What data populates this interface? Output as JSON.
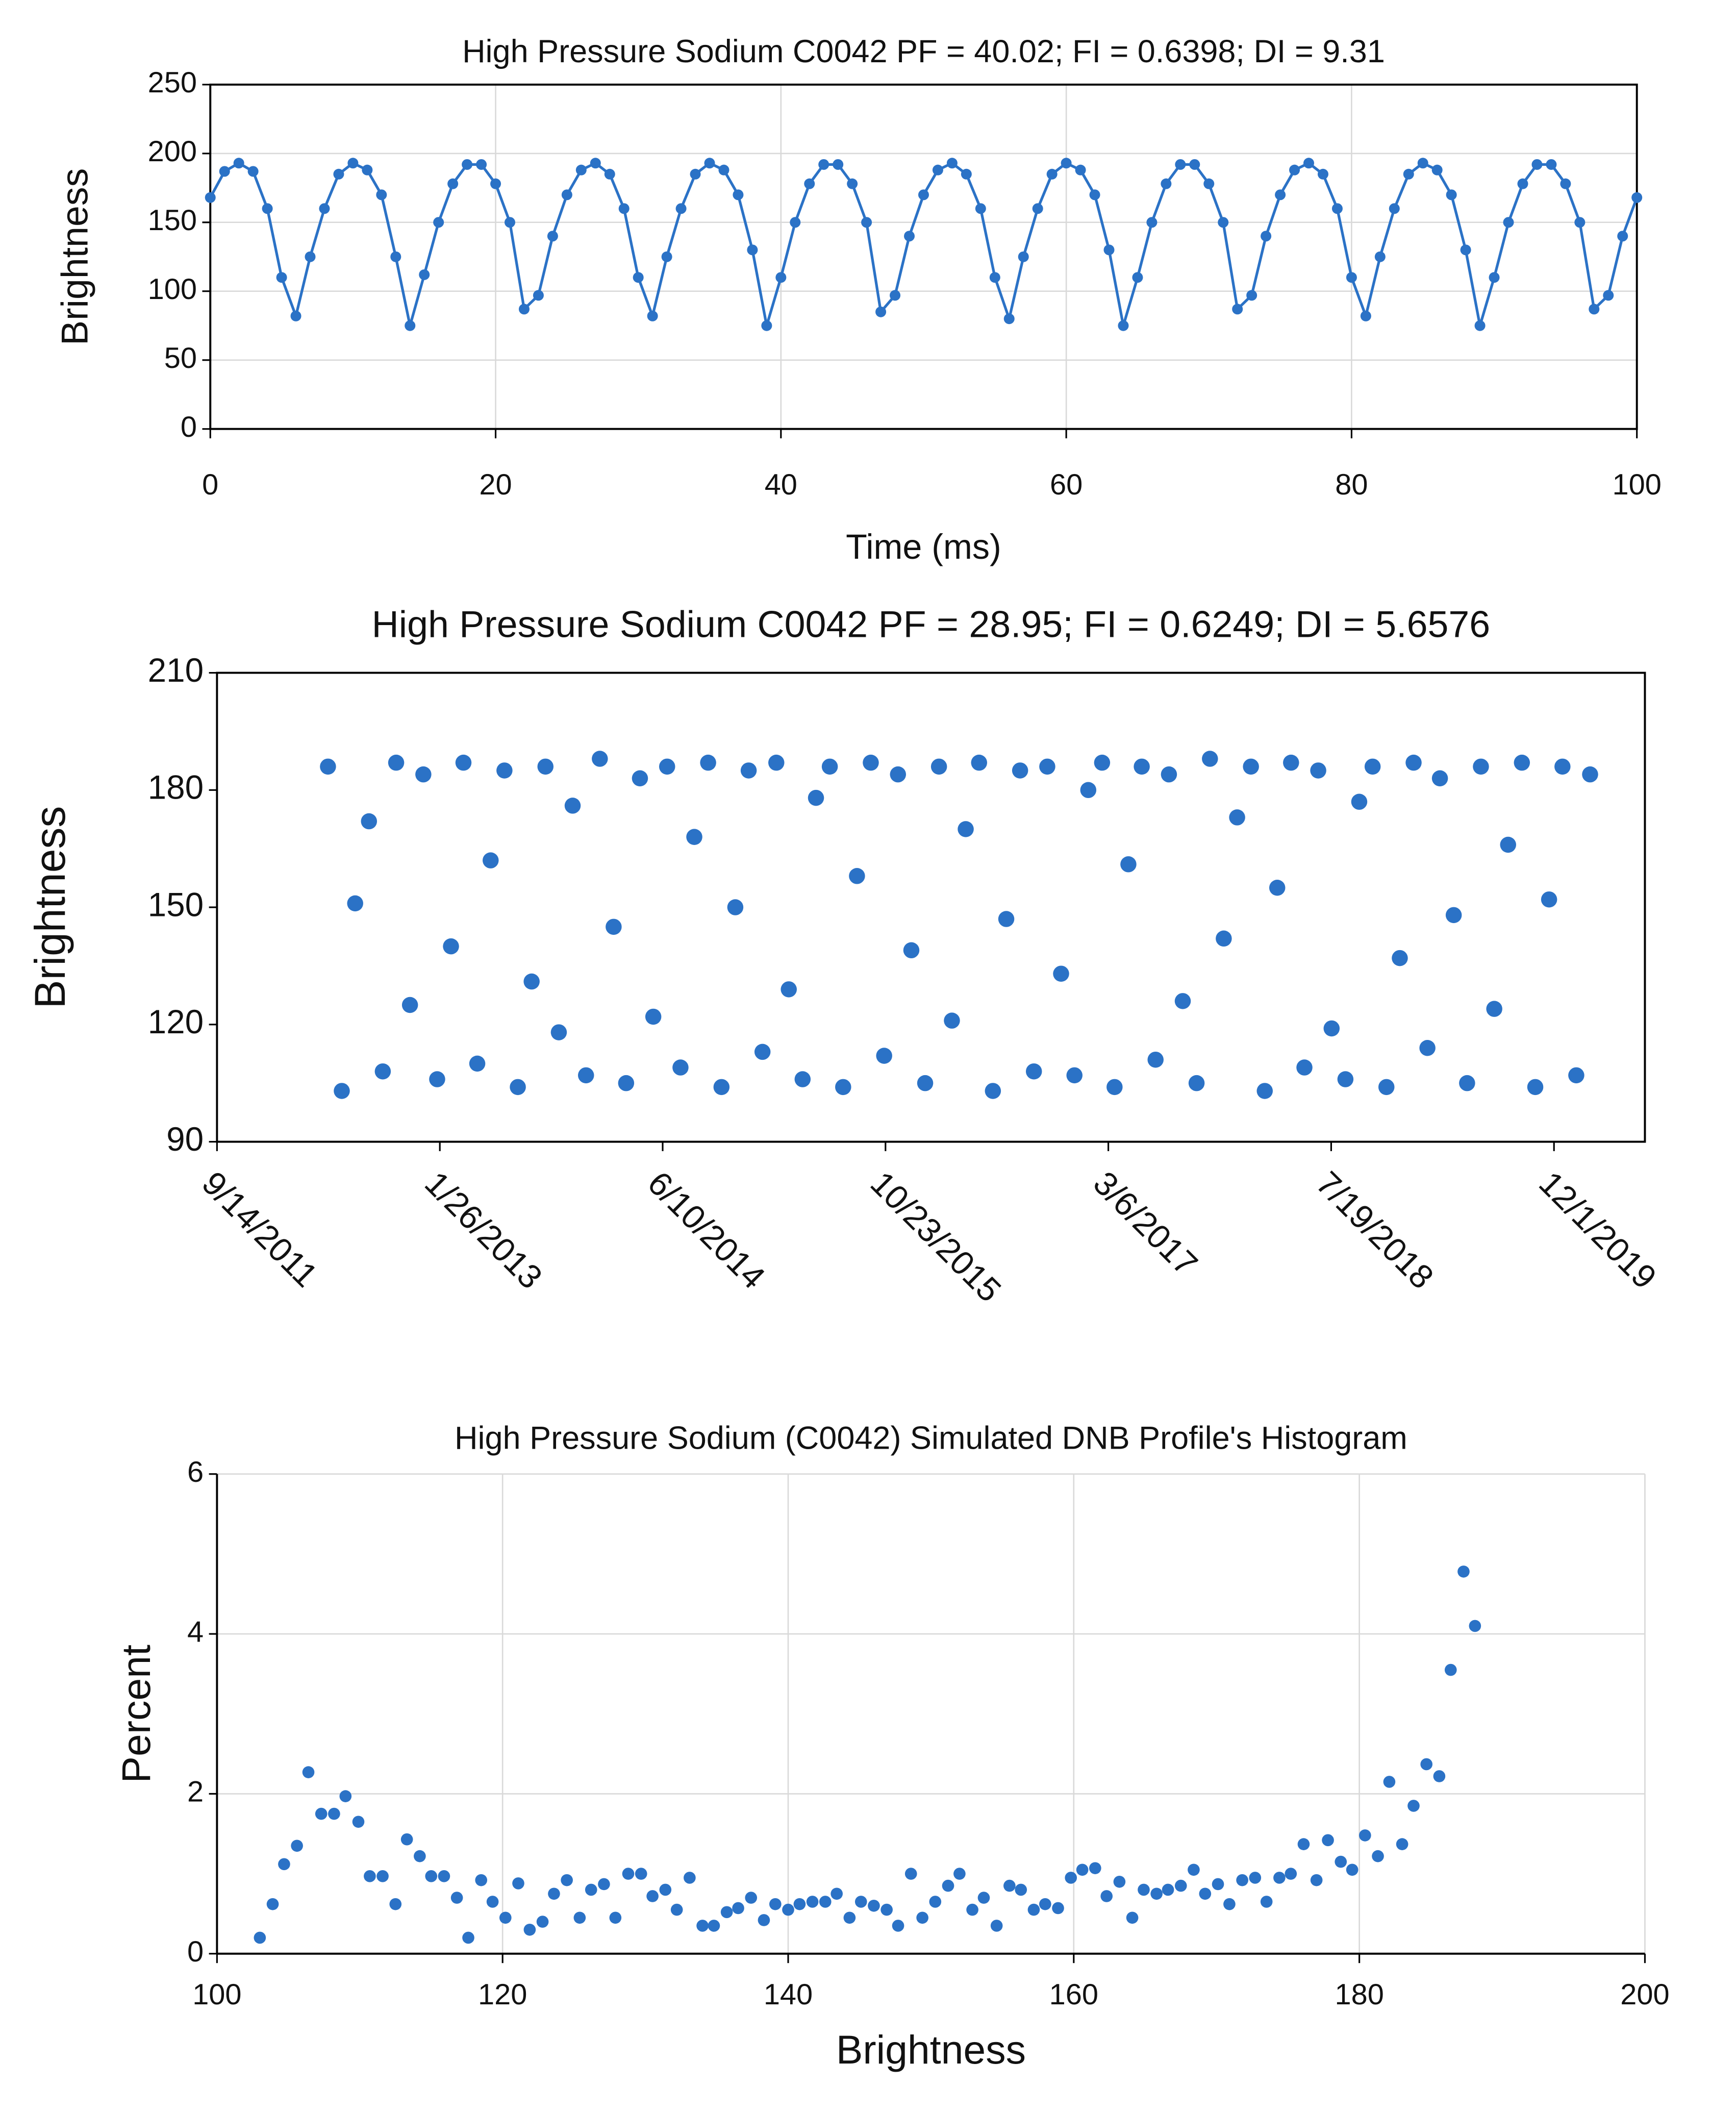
{
  "chart_data": [
    {
      "type": "line",
      "title": "High Pressure Sodium C0042 PF = 40.02; FI = 0.6398; DI = 9.31",
      "x_label": "Time (ms)",
      "y_label": "Brightness",
      "color": "#2b72c6",
      "grid": true,
      "markers": true,
      "x": [
        0,
        1,
        2,
        3,
        4,
        5,
        6,
        7,
        8,
        9,
        10,
        11,
        12,
        13,
        14,
        15,
        16,
        17,
        18,
        19,
        20,
        21,
        22,
        23,
        24,
        25,
        26,
        27,
        28,
        29,
        30,
        31,
        32,
        33,
        34,
        35,
        36,
        37,
        38,
        39,
        40,
        41,
        42,
        43,
        44,
        45,
        46,
        47,
        48,
        49,
        50,
        51,
        52,
        53,
        54,
        55,
        56,
        57,
        58,
        59,
        60,
        61,
        62,
        63,
        64,
        65,
        66,
        67,
        68,
        69,
        70,
        71,
        72,
        73,
        74,
        75,
        76,
        77,
        78,
        79,
        80,
        81,
        82,
        83,
        84,
        85,
        86,
        87,
        88,
        89,
        90,
        91,
        92,
        93,
        94,
        95,
        96,
        97,
        98,
        99,
        100
      ],
      "values": [
        168,
        187,
        193,
        187,
        160,
        110,
        82,
        125,
        160,
        185,
        193,
        188,
        170,
        125,
        75,
        112,
        150,
        178,
        192,
        192,
        178,
        150,
        87,
        97,
        140,
        170,
        188,
        193,
        185,
        160,
        110,
        82,
        125,
        160,
        185,
        193,
        188,
        170,
        130,
        75,
        110,
        150,
        178,
        192,
        192,
        178,
        150,
        85,
        97,
        140,
        170,
        188,
        193,
        185,
        160,
        110,
        80,
        125,
        160,
        185,
        193,
        188,
        170,
        130,
        75,
        110,
        150,
        178,
        192,
        192,
        178,
        150,
        87,
        97,
        140,
        170,
        188,
        193,
        185,
        160,
        110,
        82,
        125,
        160,
        185,
        193,
        188,
        170,
        130,
        75,
        110,
        150,
        178,
        192,
        192,
        178,
        150,
        87,
        97,
        140,
        168
      ],
      "xlim": [
        0,
        100
      ],
      "xticks": [
        0,
        20,
        40,
        60,
        80,
        100
      ],
      "ylim": [
        0,
        250
      ],
      "yticks": [
        0,
        50,
        100,
        150,
        200,
        250
      ]
    },
    {
      "type": "scatter",
      "title": "High Pressure Sodium C0042  PF = 28.95; FI = 0.6249; DI = 5.6576",
      "y_label": "Brightness",
      "color": "#2b72c6",
      "grid": false,
      "x": [
        "2012-05-20",
        "2012-06-20",
        "2012-07-20",
        "2012-08-20",
        "2012-09-20",
        "2012-10-20",
        "2012-11-20",
        "2012-12-20",
        "2013-01-20",
        "2013-02-20",
        "2013-03-20",
        "2013-04-20",
        "2013-05-20",
        "2013-06-20",
        "2013-07-20",
        "2013-08-20",
        "2013-09-20",
        "2013-10-20",
        "2013-11-20",
        "2013-12-20",
        "2014-01-20",
        "2014-02-20",
        "2014-03-20",
        "2014-04-20",
        "2014-05-20",
        "2014-06-20",
        "2014-07-20",
        "2014-08-20",
        "2014-09-20",
        "2014-10-20",
        "2014-11-20",
        "2014-12-20",
        "2015-01-20",
        "2015-02-20",
        "2015-03-20",
        "2015-04-20",
        "2015-05-20",
        "2015-06-20",
        "2015-07-20",
        "2015-08-20",
        "2015-09-20",
        "2015-10-20",
        "2015-11-20",
        "2015-12-20",
        "2016-01-20",
        "2016-02-20",
        "2016-03-20",
        "2016-04-20",
        "2016-05-20",
        "2016-06-20",
        "2016-07-20",
        "2016-08-20",
        "2016-09-20",
        "2016-10-20",
        "2016-11-20",
        "2016-12-20",
        "2017-01-20",
        "2017-02-20",
        "2017-03-20",
        "2017-04-20",
        "2017-05-20",
        "2017-06-20",
        "2017-07-20",
        "2017-08-20",
        "2017-09-20",
        "2017-10-20",
        "2017-11-20",
        "2017-12-20",
        "2018-01-20",
        "2018-02-20",
        "2018-03-20",
        "2018-04-20",
        "2018-05-20",
        "2018-06-20",
        "2018-07-20",
        "2018-08-20",
        "2018-09-20",
        "2018-10-20",
        "2018-11-20",
        "2018-12-20",
        "2019-01-20",
        "2019-02-20",
        "2019-03-20",
        "2019-04-20",
        "2019-05-20",
        "2019-06-20",
        "2019-07-20",
        "2019-08-20",
        "2019-09-20",
        "2019-10-20",
        "2019-11-20",
        "2019-12-20",
        "2020-01-20",
        "2020-02-20"
      ],
      "values": [
        186,
        103,
        151,
        172,
        108,
        187,
        125,
        184,
        106,
        140,
        187,
        110,
        162,
        185,
        104,
        131,
        186,
        118,
        176,
        107,
        188,
        145,
        105,
        183,
        122,
        186,
        109,
        168,
        187,
        104,
        150,
        185,
        113,
        187,
        129,
        106,
        178,
        186,
        104,
        158,
        187,
        112,
        184,
        139,
        105,
        186,
        121,
        170,
        187,
        103,
        147,
        185,
        108,
        186,
        133,
        107,
        180,
        187,
        104,
        161,
        186,
        111,
        184,
        126,
        105,
        188,
        142,
        173,
        186,
        103,
        155,
        187,
        109,
        185,
        119,
        106,
        177,
        186,
        104,
        137,
        187,
        114,
        183,
        148,
        105,
        186,
        124,
        166,
        187,
        104,
        152,
        186,
        107,
        184
      ],
      "xlim": [
        "2011-09-14",
        "2020-06-22"
      ],
      "xticks": [
        {
          "value": "2011-09-14",
          "label": "9/14/2011"
        },
        {
          "value": "2013-01-26",
          "label": "1/26/2013"
        },
        {
          "value": "2014-06-10",
          "label": "6/10/2014"
        },
        {
          "value": "2015-10-23",
          "label": "10/23/2015"
        },
        {
          "value": "2017-03-06",
          "label": "3/6/2017"
        },
        {
          "value": "2018-07-19",
          "label": "7/19/2018"
        },
        {
          "value": "2019-12-01",
          "label": "12/1/2019"
        }
      ],
      "ylim": [
        90,
        210
      ],
      "yticks": [
        90,
        120,
        150,
        180,
        210
      ]
    },
    {
      "type": "scatter",
      "title": "High Pressure Sodium (C0042) Simulated DNB Profile's Histogram",
      "x_label": "Brightness",
      "y_label": "Percent",
      "color": "#2b72c6",
      "grid": true,
      "x": [
        103,
        103.9,
        104.7,
        105.6,
        106.4,
        107.3,
        108.2,
        109,
        109.9,
        110.7,
        111.6,
        112.5,
        113.3,
        114.2,
        115,
        115.9,
        116.8,
        117.6,
        118.5,
        119.3,
        120.2,
        121.1,
        121.9,
        122.8,
        123.6,
        124.5,
        125.4,
        126.2,
        127.1,
        127.9,
        128.8,
        129.7,
        130.5,
        131.4,
        132.2,
        133.1,
        134,
        134.8,
        135.7,
        136.5,
        137.4,
        138.3,
        139.1,
        140,
        140.8,
        141.7,
        142.6,
        143.4,
        144.3,
        145.1,
        146,
        146.9,
        147.7,
        148.6,
        149.4,
        150.3,
        151.2,
        152,
        152.9,
        153.7,
        154.6,
        155.5,
        156.3,
        157.2,
        158,
        158.9,
        159.8,
        160.6,
        161.5,
        162.3,
        163.2,
        164.1,
        164.9,
        165.8,
        166.6,
        167.5,
        168.4,
        169.2,
        170.1,
        170.9,
        171.8,
        172.7,
        173.5,
        174.4,
        175.2,
        176.1,
        177,
        177.8,
        178.7,
        179.5,
        180.4,
        181.3,
        182.1,
        183,
        183.8,
        184.7,
        185.6,
        186.4,
        187.3,
        188.1
      ],
      "values": [
        0.2,
        0.62,
        1.12,
        1.35,
        2.27,
        1.75,
        1.75,
        1.97,
        1.65,
        0.97,
        0.97,
        0.62,
        1.43,
        1.22,
        0.97,
        0.97,
        0.7,
        0.2,
        0.92,
        0.65,
        0.45,
        0.88,
        0.3,
        0.4,
        0.75,
        0.92,
        0.45,
        0.8,
        0.87,
        0.45,
        1.0,
        1.0,
        0.72,
        0.8,
        0.55,
        0.95,
        0.35,
        0.35,
        0.52,
        0.57,
        0.7,
        0.42,
        0.62,
        0.55,
        0.62,
        0.65,
        0.65,
        0.75,
        0.45,
        0.65,
        0.6,
        0.55,
        0.35,
        1.0,
        0.45,
        0.65,
        0.85,
        1.0,
        0.55,
        0.7,
        0.35,
        0.85,
        0.8,
        0.55,
        0.62,
        0.57,
        0.95,
        1.05,
        1.07,
        0.72,
        0.9,
        0.45,
        0.8,
        0.75,
        0.8,
        0.85,
        1.05,
        0.75,
        0.87,
        0.62,
        0.92,
        0.95,
        0.65,
        0.95,
        1.0,
        1.37,
        0.92,
        1.42,
        1.15,
        1.05,
        1.48,
        1.22,
        2.15,
        1.37,
        1.85,
        2.37,
        2.22,
        3.55,
        4.78,
        4.1
      ],
      "xlim": [
        100,
        200
      ],
      "xticks": [
        100,
        120,
        140,
        160,
        180,
        200
      ],
      "ylim": [
        0,
        6
      ],
      "yticks": [
        0,
        2,
        4,
        6
      ]
    }
  ]
}
